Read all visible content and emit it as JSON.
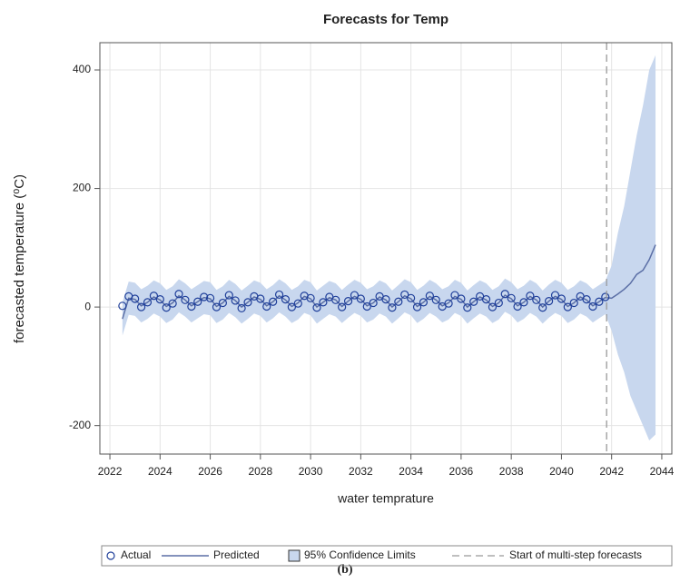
{
  "chart_data": {
    "type": "forecast",
    "title": "Forecasts for Temp",
    "xlabel": "water temprature",
    "ylabel": "forecasted temperature (⁰C)",
    "caption": "(b)",
    "xlim": [
      2021.6,
      2044.4
    ],
    "xticks": [
      2022,
      2024,
      2026,
      2028,
      2030,
      2032,
      2034,
      2036,
      2038,
      2040,
      2042,
      2044
    ],
    "ylim": [
      -248,
      446
    ],
    "yticks": [
      -200,
      0,
      200,
      400
    ],
    "grid": true,
    "x": [
      2022.5,
      2022.75,
      2023,
      2023.25,
      2023.5,
      2023.75,
      2024,
      2024.25,
      2024.5,
      2024.75,
      2025,
      2025.25,
      2025.5,
      2025.75,
      2026,
      2026.25,
      2026.5,
      2026.75,
      2027,
      2027.25,
      2027.5,
      2027.75,
      2028,
      2028.25,
      2028.5,
      2028.75,
      2029,
      2029.25,
      2029.5,
      2029.75,
      2030,
      2030.25,
      2030.5,
      2030.75,
      2031,
      2031.25,
      2031.5,
      2031.75,
      2032,
      2032.25,
      2032.5,
      2032.75,
      2033,
      2033.25,
      2033.5,
      2033.75,
      2034,
      2034.25,
      2034.5,
      2034.75,
      2035,
      2035.25,
      2035.5,
      2035.75,
      2036,
      2036.25,
      2036.5,
      2036.75,
      2037,
      2037.25,
      2037.5,
      2037.75,
      2038,
      2038.25,
      2038.5,
      2038.75,
      2039,
      2039.25,
      2039.5,
      2039.75,
      2040,
      2040.25,
      2040.5,
      2040.75,
      2041,
      2041.25,
      2041.5,
      2041.75,
      2042,
      2042.25,
      2042.5,
      2042.75,
      2043,
      2043.25,
      2043.5,
      2043.75
    ],
    "series": [
      {
        "name": "Actual",
        "type": "scatter",
        "color": "#1f3f9a",
        "values": [
          2,
          18,
          14,
          0,
          8,
          19,
          13,
          -1,
          6,
          22,
          12,
          1,
          9,
          17,
          15,
          0,
          7,
          20,
          11,
          -2,
          8,
          18,
          14,
          1,
          9,
          21,
          13,
          0,
          6,
          19,
          15,
          -1,
          8,
          17,
          12,
          0,
          10,
          20,
          14,
          1,
          7,
          18,
          13,
          -1,
          9,
          21,
          15,
          0,
          8,
          19,
          12,
          1,
          6,
          20,
          14,
          -1,
          9,
          18,
          13,
          0,
          7,
          22,
          15,
          1,
          8,
          19,
          12,
          -1,
          10,
          20,
          14,
          0,
          7,
          18,
          13,
          1,
          9,
          17,
          null,
          null,
          null,
          null,
          null,
          null,
          null,
          null
        ]
      },
      {
        "name": "Predicted",
        "type": "line",
        "color": "#5b6fa6",
        "values": [
          -20,
          15,
          13,
          2,
          8,
          17,
          12,
          1,
          7,
          19,
          12,
          2,
          9,
          16,
          14,
          1,
          7,
          18,
          11,
          0,
          8,
          17,
          13,
          2,
          9,
          19,
          12,
          1,
          7,
          18,
          14,
          0,
          8,
          16,
          12,
          1,
          10,
          18,
          13,
          2,
          7,
          17,
          12,
          0,
          9,
          19,
          14,
          1,
          8,
          18,
          12,
          2,
          7,
          18,
          13,
          0,
          9,
          17,
          12,
          1,
          7,
          20,
          14,
          2,
          8,
          18,
          12,
          0,
          10,
          18,
          13,
          1,
          7,
          17,
          12,
          2,
          9,
          16,
          15,
          22,
          30,
          40,
          55,
          62,
          80,
          105
        ]
      },
      {
        "name": "95% Confidence Limits",
        "type": "band",
        "color": "#c8d7ee",
        "lower": [
          -48,
          -13,
          -15,
          -26,
          -20,
          -11,
          -16,
          -27,
          -21,
          -9,
          -16,
          -26,
          -19,
          -12,
          -14,
          -27,
          -21,
          -10,
          -17,
          -28,
          -20,
          -11,
          -15,
          -26,
          -19,
          -9,
          -16,
          -27,
          -21,
          -10,
          -14,
          -28,
          -20,
          -12,
          -16,
          -27,
          -18,
          -10,
          -15,
          -26,
          -21,
          -11,
          -16,
          -28,
          -19,
          -9,
          -14,
          -27,
          -20,
          -10,
          -16,
          -26,
          -21,
          -10,
          -15,
          -28,
          -19,
          -11,
          -16,
          -27,
          -21,
          -8,
          -14,
          -26,
          -20,
          -10,
          -16,
          -28,
          -18,
          -10,
          -15,
          -27,
          -21,
          -11,
          -16,
          -26,
          -19,
          -12,
          -40,
          -80,
          -110,
          -150,
          -175,
          -200,
          -225,
          -215
        ],
        "upper": [
          8,
          43,
          41,
          30,
          36,
          45,
          40,
          29,
          35,
          47,
          40,
          30,
          37,
          44,
          42,
          29,
          35,
          46,
          39,
          28,
          36,
          45,
          41,
          30,
          37,
          47,
          40,
          29,
          35,
          46,
          42,
          28,
          36,
          44,
          40,
          29,
          38,
          46,
          41,
          30,
          35,
          45,
          40,
          28,
          37,
          47,
          42,
          29,
          36,
          46,
          40,
          30,
          35,
          46,
          41,
          28,
          37,
          45,
          40,
          29,
          35,
          48,
          42,
          30,
          36,
          46,
          40,
          28,
          38,
          46,
          41,
          29,
          35,
          45,
          40,
          30,
          37,
          44,
          70,
          125,
          170,
          230,
          290,
          340,
          400,
          425
        ]
      }
    ],
    "reference_line": {
      "x": 2041.8,
      "label": "Start of multi-step forecasts",
      "color": "#999999"
    }
  }
}
